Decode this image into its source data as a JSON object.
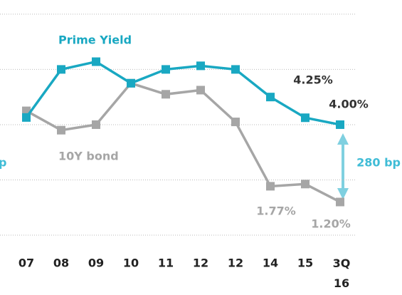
{
  "chart_data": {
    "type": "line",
    "categories": [
      "07",
      "08",
      "09",
      "10",
      "11",
      "12",
      "12",
      "14",
      "15",
      "3Q 16"
    ],
    "series": [
      {
        "name": "Prime Yield",
        "color": "#19a8c2",
        "values": [
          4.26,
          6.0,
          6.28,
          5.5,
          6.0,
          6.13,
          6.0,
          5.0,
          4.25,
          4.0
        ],
        "value_labels": [
          null,
          null,
          null,
          null,
          null,
          null,
          null,
          null,
          "4.25%",
          "4.00%"
        ]
      },
      {
        "name": "10Y bond",
        "color": "#a6a6a6",
        "values": [
          4.5,
          3.8,
          4.0,
          5.5,
          5.1,
          5.25,
          4.1,
          1.77,
          1.85,
          1.2
        ],
        "value_labels": [
          null,
          null,
          null,
          null,
          null,
          null,
          null,
          "1.77%",
          null,
          "1.20%"
        ]
      }
    ],
    "ylim": [
      0,
      8.5
    ],
    "yticks": [
      0,
      2,
      4,
      6,
      8
    ],
    "grid": true,
    "annotations": [
      "280 bp",
      "p"
    ]
  }
}
